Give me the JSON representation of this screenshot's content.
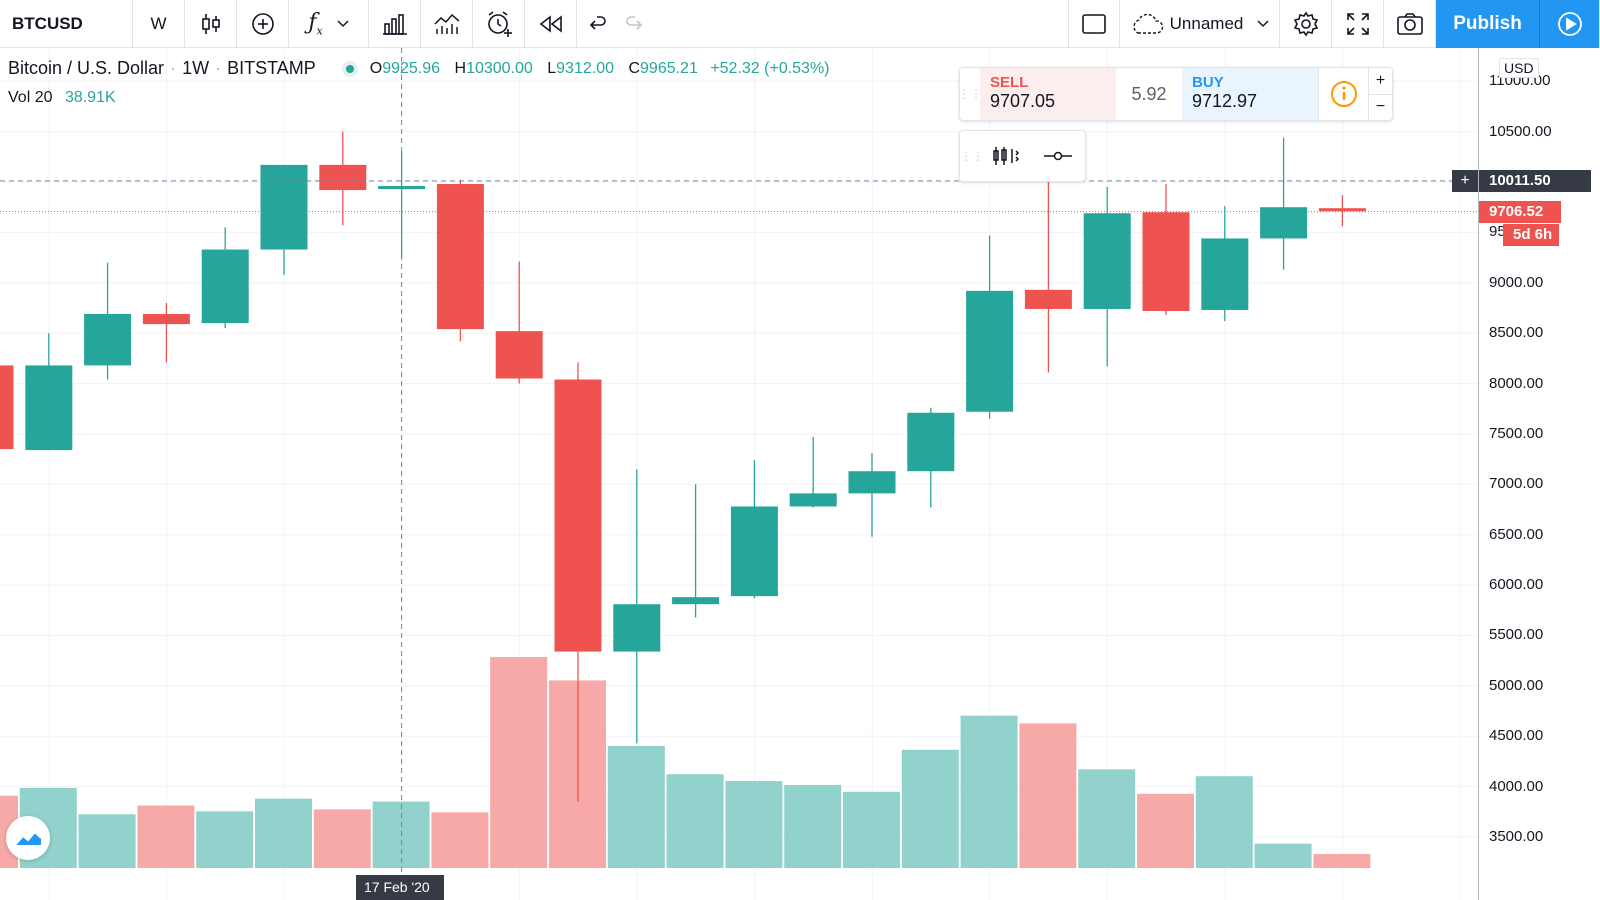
{
  "toolbar": {
    "symbol": "BTCUSD",
    "interval": "W",
    "layout_name": "Unnamed",
    "publish_label": "Publish"
  },
  "legend": {
    "title": "Bitcoin / U.S. Dollar",
    "interval": "1W",
    "exchange": "BITSTAMP",
    "open_label": "O",
    "open": "9925.96",
    "high_label": "H",
    "high": "10300.00",
    "low_label": "L",
    "low": "9312.00",
    "close_label": "C",
    "close": "9965.21",
    "change": "+52.32 (+0.53%)",
    "volume_label": "Vol 20",
    "volume": "38.91K"
  },
  "order_panel": {
    "sell_label": "SELL",
    "sell_price": "9707.05",
    "spread": "5.92",
    "buy_label": "BUY",
    "buy_price": "9712.97"
  },
  "price_scale": {
    "currency": "USD",
    "crosshair_price": "10011.50",
    "last_price": "9706.52",
    "countdown": "5d 6h"
  },
  "time_scale": {
    "crosshair_date": "17 Feb '20"
  },
  "colors": {
    "up": "#26a69a",
    "down": "#ef5350",
    "up_volume": "#92d2cc",
    "down_volume": "#f7a9a7",
    "accent": "#2196f3"
  },
  "chart_data": {
    "type": "candlestick",
    "interval": "1W",
    "y_ticks": [
      "3500.00",
      "4000.00",
      "4500.00",
      "5000.00",
      "5500.00",
      "6000.00",
      "6500.00",
      "7000.00",
      "7500.00",
      "8000.00",
      "8500.00",
      "9000.00",
      "9500.00",
      "10000.00",
      "10500.00",
      "11000.00"
    ],
    "ylim": [
      3200,
      11350
    ],
    "candles": [
      {
        "o": 8180,
        "h": 8480,
        "l": 7350,
        "c": 7350,
        "v": 3800
      },
      {
        "o": 7340,
        "h": 8500,
        "l": 7340,
        "c": 8180,
        "v": 3880
      },
      {
        "o": 8180,
        "h": 9200,
        "l": 8040,
        "c": 8690,
        "v": 3610
      },
      {
        "o": 8690,
        "h": 8800,
        "l": 8210,
        "c": 8590,
        "v": 3700
      },
      {
        "o": 8600,
        "h": 9550,
        "l": 8550,
        "c": 9330,
        "v": 3640
      },
      {
        "o": 9330,
        "h": 10150,
        "l": 9080,
        "c": 10170,
        "v": 3770
      },
      {
        "o": 10170,
        "h": 10500,
        "l": 9570,
        "c": 9920,
        "v": 3660
      },
      {
        "o": 9930,
        "h": 10300,
        "l": 9250,
        "c": 9960,
        "v": 3740
      },
      {
        "o": 9980,
        "h": 10020,
        "l": 8420,
        "c": 8540,
        "v": 3630
      },
      {
        "o": 8520,
        "h": 9210,
        "l": 8000,
        "c": 8050,
        "v": 5220
      },
      {
        "o": 8040,
        "h": 8210,
        "l": 3850,
        "c": 5340,
        "v": 4980
      },
      {
        "o": 5340,
        "h": 7150,
        "l": 4430,
        "c": 5810,
        "v": 4310
      },
      {
        "o": 5810,
        "h": 7000,
        "l": 5680,
        "c": 5880,
        "v": 4020
      },
      {
        "o": 5890,
        "h": 7240,
        "l": 5870,
        "c": 6780,
        "v": 3950
      },
      {
        "o": 6780,
        "h": 7470,
        "l": 6770,
        "c": 6910,
        "v": 3910
      },
      {
        "o": 6910,
        "h": 7310,
        "l": 6480,
        "c": 7130,
        "v": 3840
      },
      {
        "o": 7130,
        "h": 7760,
        "l": 6770,
        "c": 7710,
        "v": 4270
      },
      {
        "o": 7720,
        "h": 9470,
        "l": 7650,
        "c": 8920,
        "v": 4620
      },
      {
        "o": 8930,
        "h": 10010,
        "l": 8110,
        "c": 8740,
        "v": 4540
      },
      {
        "o": 8740,
        "h": 9950,
        "l": 8170,
        "c": 9690,
        "v": 4070
      },
      {
        "o": 9700,
        "h": 9980,
        "l": 8680,
        "c": 8720,
        "v": 3820
      },
      {
        "o": 8730,
        "h": 9760,
        "l": 8620,
        "c": 9440,
        "v": 4000
      },
      {
        "o": 9440,
        "h": 10440,
        "l": 9130,
        "c": 9750,
        "v": 3310
      },
      {
        "o": 9740,
        "h": 9870,
        "l": 9560,
        "c": 9710,
        "v": null
      }
    ]
  }
}
